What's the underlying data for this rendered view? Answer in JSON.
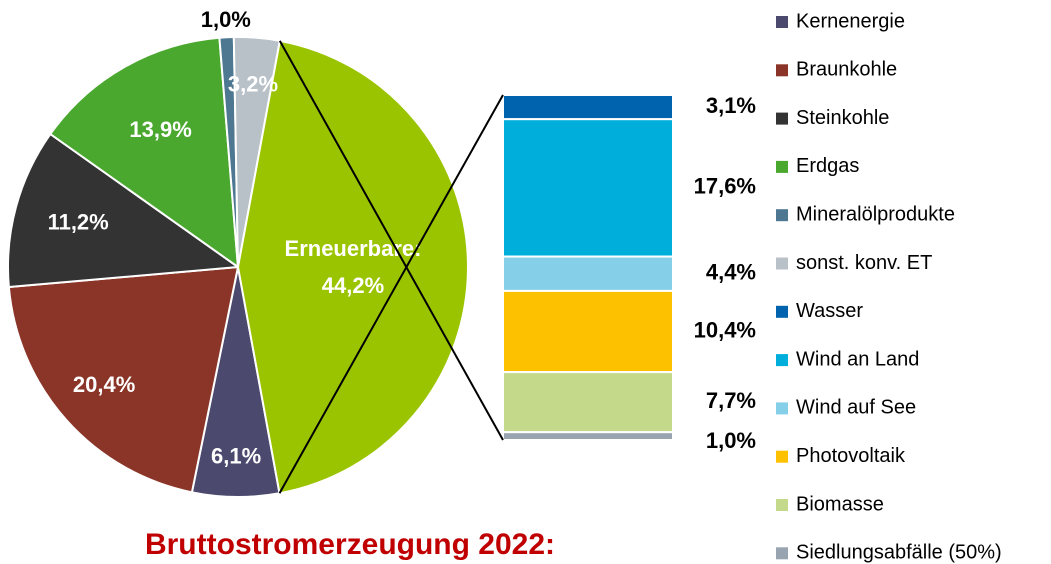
{
  "chart_data": {
    "type": "pie-of-bar",
    "title": "Bruttostromerzeugung 2022:",
    "pie": {
      "categories": [
        "Kernenergie",
        "Braunkohle",
        "Steinkohle",
        "Erdgas",
        "Mineralölprodukte",
        "sonst. konv. ET",
        "Erneuerbare:"
      ],
      "values": [
        6.1,
        20.4,
        11.2,
        13.9,
        1.0,
        3.2,
        44.2
      ],
      "value_labels": [
        "6,1%",
        "20,4%",
        "11,2%",
        "13,9%",
        "1,0%",
        "3,2%",
        "44,2%"
      ],
      "colors": [
        "#4b4a6e",
        "#8b3528",
        "#333333",
        "#4aa82f",
        "#4e7891",
        "#b8c0c8",
        "#9bc400"
      ]
    },
    "bar": {
      "categories": [
        "Wasser",
        "Wind an Land",
        "Wind auf See",
        "Photovoltaik",
        "Biomasse",
        "Siedlungsabfälle (50%)"
      ],
      "values": [
        3.1,
        17.6,
        4.4,
        10.4,
        7.7,
        1.0
      ],
      "value_labels": [
        "3,1%",
        "17,6%",
        "4,4%",
        "10,4%",
        "7,7%",
        "1,0%"
      ],
      "colors": [
        "#0063ad",
        "#00aedb",
        "#86cfe8",
        "#fdc100",
        "#c4da8a",
        "#98a4b0"
      ]
    }
  }
}
